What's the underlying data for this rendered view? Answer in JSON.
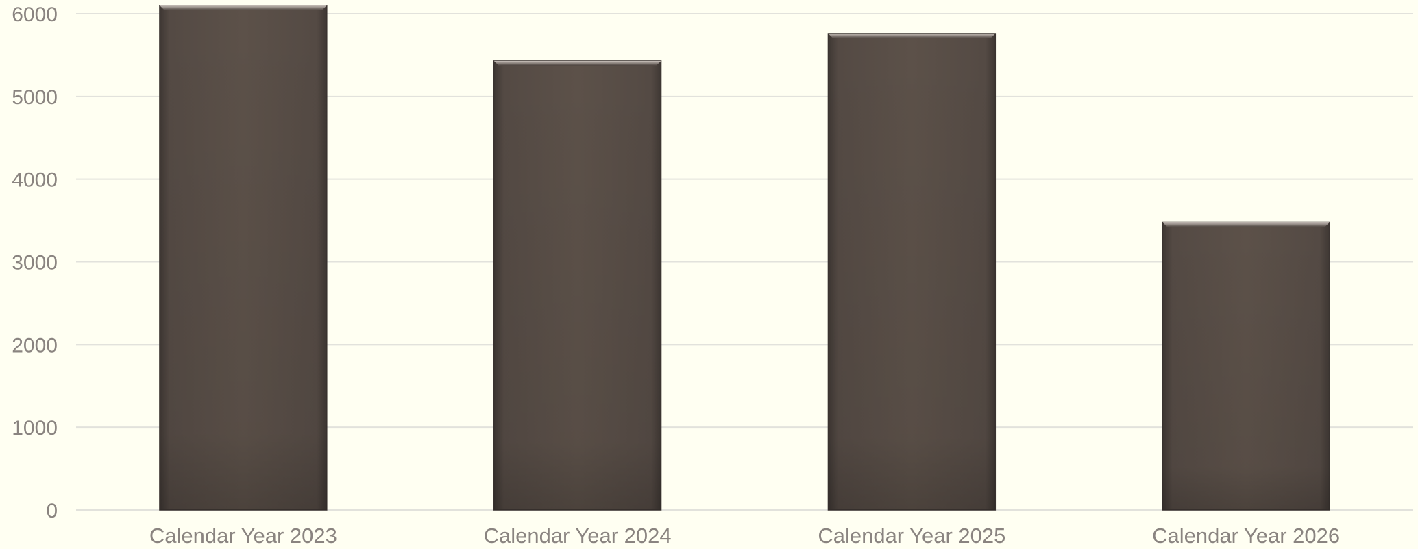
{
  "chart_data": {
    "type": "bar",
    "categories": [
      "Calendar Year 2023",
      "Calendar Year 2024",
      "Calendar Year 2025",
      "Calendar Year 2026"
    ],
    "series": [
      {
        "values": [
          6100,
          5430,
          5760,
          3480
        ]
      }
    ],
    "yticks": [
      0,
      1000,
      2000,
      3000,
      4000,
      5000,
      6000
    ],
    "ylim": [
      0,
      6000
    ],
    "title": "",
    "xlabel": "",
    "ylabel": "",
    "grid": true,
    "legend": "none",
    "colors": {
      "bar": "#5a4f48",
      "bar_edge": "#3a3330",
      "grid": "#e2e2dc",
      "axis_text": "#8a8480",
      "background": "#fffff2"
    }
  }
}
